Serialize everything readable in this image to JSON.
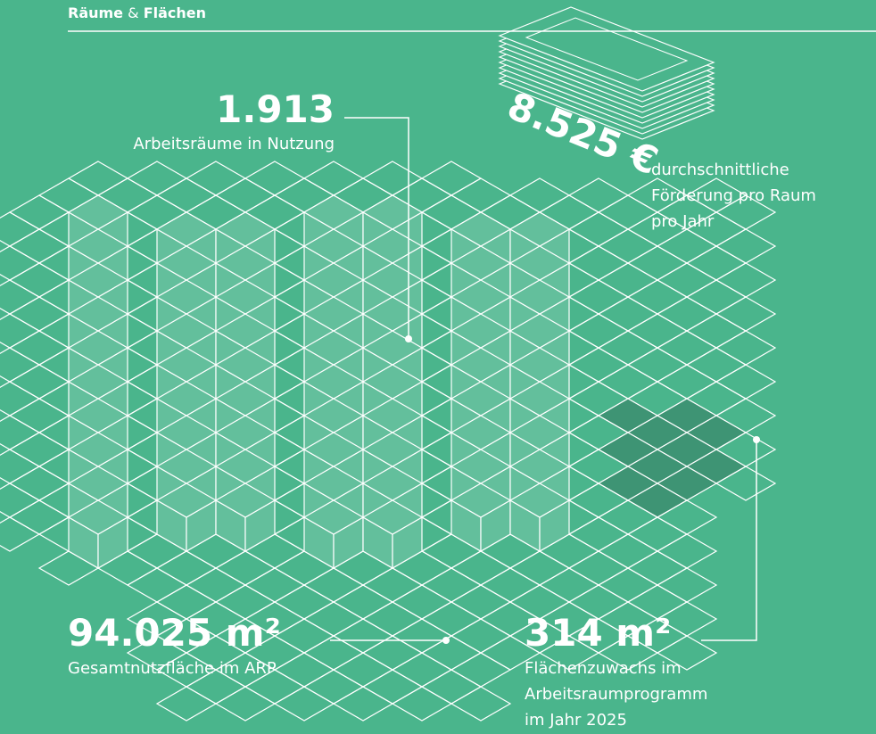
{
  "header": {
    "part1": "Räume",
    "connector": "&",
    "part2": "Flächen"
  },
  "stats": [
    {
      "value": "1.913",
      "label": [
        "Arbeitsräume in Nutzung"
      ]
    },
    {
      "value": "8.525 €",
      "label": [
        "durchschnittliche",
        "Förderung pro Raum",
        "pro Jahr"
      ]
    },
    {
      "value": "94.025 m²",
      "label": [
        "Gesamtnutzfläche im ARP"
      ]
    },
    {
      "value": "314 m²",
      "label": [
        "Flächenzuwachs im",
        "Arbeitsraumprogramm",
        "im Jahr 2025"
      ]
    }
  ]
}
